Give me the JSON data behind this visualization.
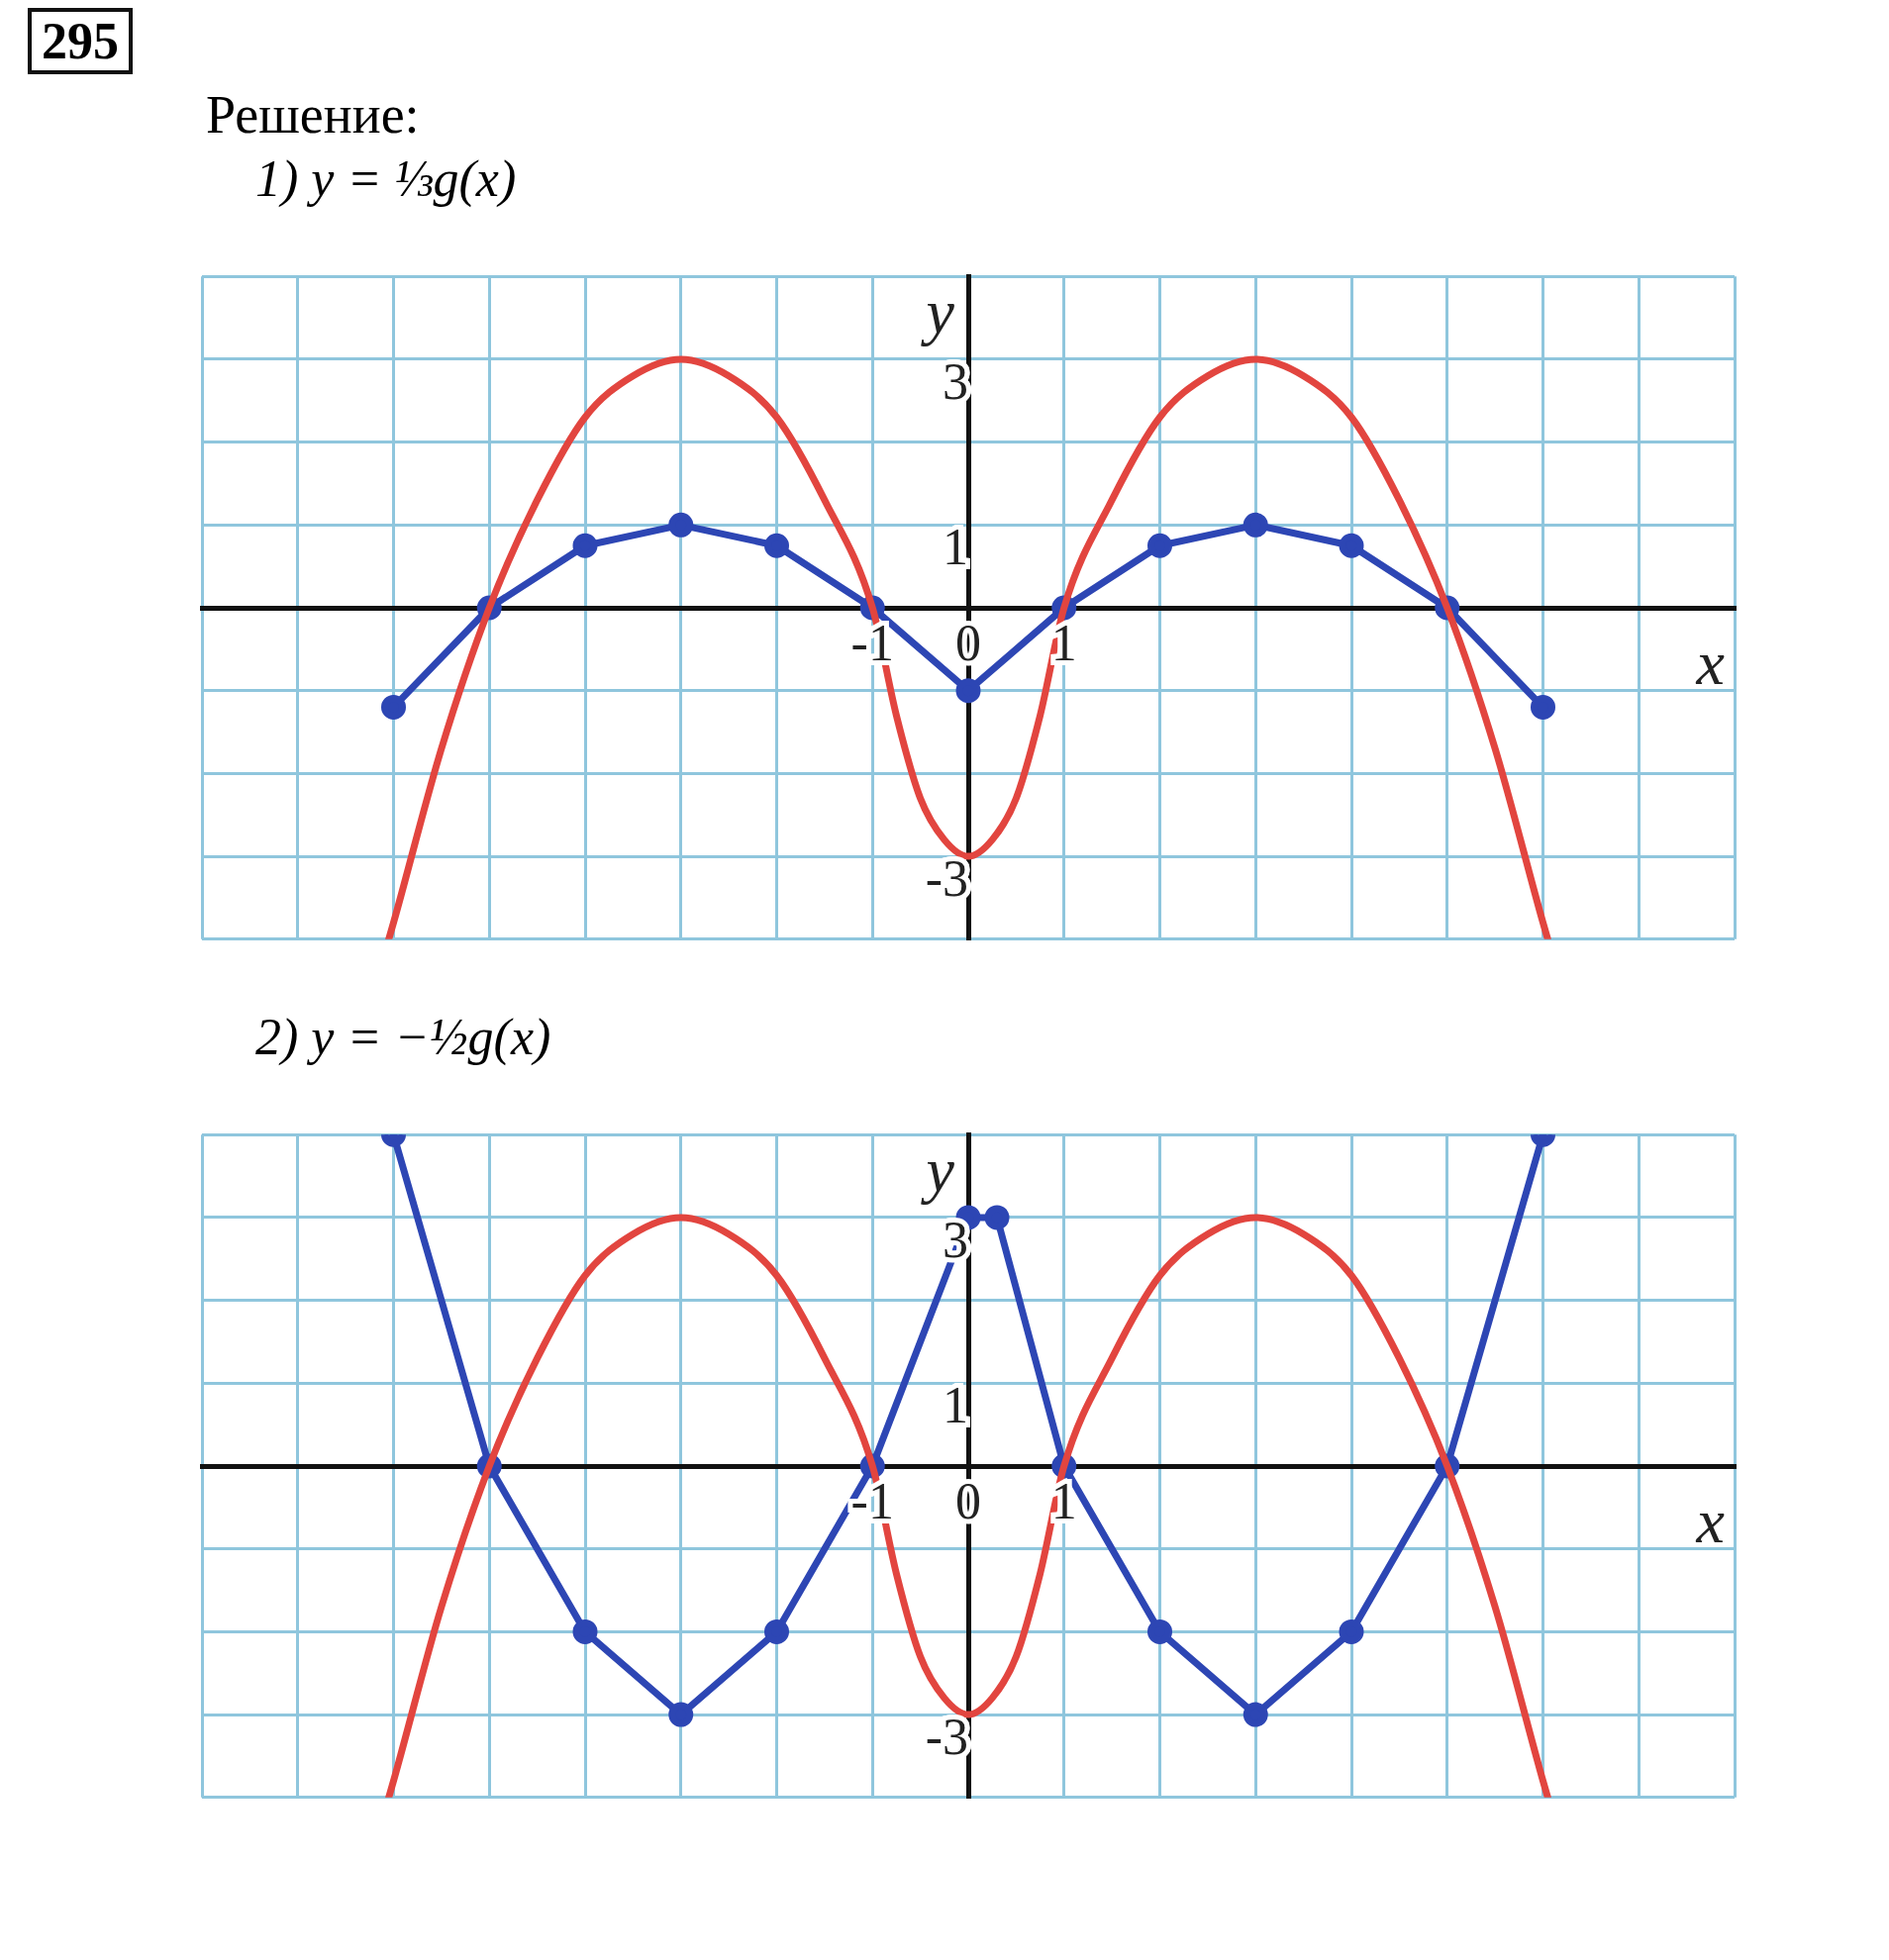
{
  "chart_data": [
    {
      "type": "line",
      "annotations": [
        "295",
        "Решение:"
      ],
      "title": "1) y = ⅓g(x)",
      "xlabel": "x",
      "ylabel": "y",
      "xlim": [
        -8,
        8
      ],
      "ylim": [
        -4,
        4
      ],
      "xticks": [
        {
          "value": -8,
          "label": null
        },
        {
          "value": -7,
          "label": null
        },
        {
          "value": -6,
          "label": null
        },
        {
          "value": -5,
          "label": null
        },
        {
          "value": -4,
          "label": null
        },
        {
          "value": -3,
          "label": null
        },
        {
          "value": -2,
          "label": null
        },
        -1,
        0,
        1,
        {
          "value": 2,
          "label": null
        },
        {
          "value": 3,
          "label": null
        },
        {
          "value": 4,
          "label": null
        },
        {
          "value": 5,
          "label": null
        },
        {
          "value": 6,
          "label": null
        },
        {
          "value": 7,
          "label": null
        },
        {
          "value": 8,
          "label": null
        }
      ],
      "yticks": [
        {
          "value": -4,
          "label": null
        },
        -3,
        {
          "value": -2,
          "label": null
        },
        {
          "value": -1,
          "label": null
        },
        {
          "value": 0,
          "label": null
        },
        1,
        {
          "value": 2,
          "label": null
        },
        3,
        {
          "value": 4,
          "label": null
        }
      ],
      "grid": true,
      "line_style": "solid",
      "series": [
        {
          "color": "#e2453f",
          "marker": "none",
          "x": [
            -6.05,
            -6,
            -5.5,
            -5,
            -4.5,
            -4,
            -3.5,
            -3,
            -2.5,
            -2,
            -1.5,
            -1,
            -0.75,
            -0.5,
            -0.25,
            0,
            0.25,
            0.5,
            0.75,
            1,
            1.5,
            2,
            2.5,
            3,
            3.5,
            4,
            4.5,
            5,
            5.5,
            6,
            6.05
          ],
          "values": [
            -4,
            -3.8,
            -1.7,
            0,
            1.3,
            2.3,
            2.8,
            3,
            2.8,
            2.3,
            1.3,
            0,
            -1.3,
            -2.3,
            -2.8,
            -3,
            -2.8,
            -2.3,
            -1.3,
            0,
            1.3,
            2.3,
            2.8,
            3,
            2.8,
            2.3,
            1.3,
            0,
            -1.7,
            -3.8,
            -4
          ]
        },
        {
          "color": "#2d46b4",
          "marker": "circle",
          "x": [
            -6,
            -5,
            -4,
            -3,
            -2,
            -1,
            0,
            1,
            2,
            3,
            4,
            5,
            6
          ],
          "values": [
            -1.2,
            0,
            0.75,
            1,
            0.75,
            0,
            -1,
            0,
            0.75,
            1,
            0.75,
            0,
            -1.2
          ]
        }
      ]
    },
    {
      "type": "line",
      "title": "2) y = −½g(x)",
      "xlabel": "x",
      "ylabel": "y",
      "xlim": [
        -8,
        8
      ],
      "ylim": [
        -4,
        4
      ],
      "xticks": [
        {
          "value": -8,
          "label": null
        },
        {
          "value": -7,
          "label": null
        },
        {
          "value": -6,
          "label": null
        },
        {
          "value": -5,
          "label": null
        },
        {
          "value": -4,
          "label": null
        },
        {
          "value": -3,
          "label": null
        },
        {
          "value": -2,
          "label": null
        },
        -1,
        0,
        1,
        {
          "value": 2,
          "label": null
        },
        {
          "value": 3,
          "label": null
        },
        {
          "value": 4,
          "label": null
        },
        {
          "value": 5,
          "label": null
        },
        {
          "value": 6,
          "label": null
        },
        {
          "value": 7,
          "label": null
        },
        {
          "value": 8,
          "label": null
        }
      ],
      "yticks": [
        {
          "value": -4,
          "label": null
        },
        -3,
        {
          "value": -2,
          "label": null
        },
        {
          "value": -1,
          "label": null
        },
        {
          "value": 0,
          "label": null
        },
        1,
        {
          "value": 2,
          "label": null
        },
        3,
        {
          "value": 4,
          "label": null
        }
      ],
      "grid": true,
      "line_style": "solid",
      "series": [
        {
          "color": "#e2453f",
          "marker": "none",
          "x": [
            -6.05,
            -6,
            -5.5,
            -5,
            -4.5,
            -4,
            -3.5,
            -3,
            -2.5,
            -2,
            -1.5,
            -1,
            -0.75,
            -0.5,
            -0.25,
            0,
            0.25,
            0.5,
            0.75,
            1,
            1.5,
            2,
            2.5,
            3,
            3.5,
            4,
            4.5,
            5,
            5.5,
            6,
            6.05
          ],
          "values": [
            -4,
            -3.8,
            -1.7,
            0,
            1.3,
            2.3,
            2.8,
            3,
            2.8,
            2.3,
            1.3,
            0,
            -1.3,
            -2.3,
            -2.8,
            -3,
            -2.8,
            -2.3,
            -1.3,
            0,
            1.3,
            2.3,
            2.8,
            3,
            2.8,
            2.3,
            1.3,
            0,
            -1.7,
            -3.8,
            -4
          ]
        },
        {
          "color": "#2d46b4",
          "marker": "circle",
          "x": [
            -6,
            -5,
            -4,
            -3,
            -2,
            -1,
            0,
            0.3,
            1,
            2,
            3,
            4,
            5,
            6
          ],
          "values": [
            4,
            0,
            -2,
            -3,
            -2,
            0,
            3,
            3,
            0,
            -2,
            -3,
            -2,
            0,
            4
          ]
        }
      ]
    }
  ]
}
